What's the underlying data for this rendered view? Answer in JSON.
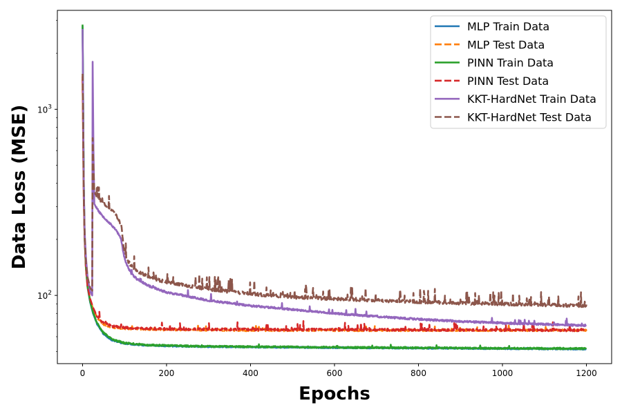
{
  "chart_data": {
    "type": "line",
    "title": "",
    "xlabel": "Epochs",
    "ylabel": "Data Loss (MSE)",
    "xlim": [
      -60,
      1260
    ],
    "ylim": [
      43,
      3400
    ],
    "yscale": "log",
    "grid": false,
    "legend_position": "top-right",
    "x_ticks": [
      0,
      200,
      400,
      600,
      800,
      1000,
      1200
    ],
    "x_tick_labels": [
      "0",
      "200",
      "400",
      "600",
      "800",
      "1000",
      "1200"
    ],
    "y_ticks": [
      100,
      1000
    ],
    "y_tick_labels": [
      "10²",
      "10³"
    ],
    "series": [
      {
        "name": "MLP Train Data",
        "color": "#1f77b4",
        "dash": "solid",
        "noise": 0.008,
        "spike_rate": 0.0,
        "spike_max": 0.0,
        "seed": 11,
        "points": [
          [
            0,
            2800
          ],
          [
            1,
            1500
          ],
          [
            2,
            700
          ],
          [
            3,
            380
          ],
          [
            5,
            200
          ],
          [
            8,
            140
          ],
          [
            12,
            110
          ],
          [
            18,
            92
          ],
          [
            25,
            80
          ],
          [
            35,
            70
          ],
          [
            50,
            62
          ],
          [
            70,
            57.5
          ],
          [
            100,
            55
          ],
          [
            150,
            54
          ],
          [
            200,
            53.5
          ],
          [
            300,
            53
          ],
          [
            400,
            52.8
          ],
          [
            600,
            52.4
          ],
          [
            800,
            52.1
          ],
          [
            1000,
            51.8
          ],
          [
            1200,
            51.5
          ]
        ]
      },
      {
        "name": "MLP Test Data",
        "color": "#ff7f0e",
        "dash": "dashed",
        "noise": 0.012,
        "spike_rate": 0.02,
        "spike_max": 0.05,
        "seed": 23,
        "points": [
          [
            0,
            1450
          ],
          [
            1,
            900
          ],
          [
            2,
            500
          ],
          [
            3,
            320
          ],
          [
            5,
            200
          ],
          [
            8,
            140
          ],
          [
            12,
            110
          ],
          [
            18,
            95
          ],
          [
            25,
            85
          ],
          [
            35,
            76
          ],
          [
            50,
            70
          ],
          [
            70,
            67.5
          ],
          [
            100,
            66.5
          ],
          [
            200,
            65.5
          ],
          [
            400,
            65
          ],
          [
            600,
            65
          ],
          [
            800,
            65
          ],
          [
            1000,
            65
          ],
          [
            1200,
            65
          ]
        ]
      },
      {
        "name": "PINN Train Data",
        "color": "#2ca02c",
        "dash": "solid",
        "noise": 0.01,
        "spike_rate": 0.015,
        "spike_max": 0.04,
        "seed": 37,
        "points": [
          [
            0,
            2850
          ],
          [
            1,
            1550
          ],
          [
            2,
            720
          ],
          [
            3,
            390
          ],
          [
            5,
            205
          ],
          [
            8,
            142
          ],
          [
            12,
            112
          ],
          [
            18,
            93
          ],
          [
            25,
            81
          ],
          [
            35,
            71
          ],
          [
            50,
            63
          ],
          [
            70,
            58
          ],
          [
            100,
            55.5
          ],
          [
            150,
            54.2
          ],
          [
            200,
            53.8
          ],
          [
            300,
            53.2
          ],
          [
            400,
            53
          ],
          [
            600,
            52.6
          ],
          [
            800,
            52.3
          ],
          [
            1000,
            52
          ],
          [
            1200,
            51.8
          ]
        ]
      },
      {
        "name": "PINN Test Data",
        "color": "#d62728",
        "dash": "dashed",
        "noise": 0.014,
        "spike_rate": 0.05,
        "spike_max": 0.1,
        "seed": 41,
        "points": [
          [
            0,
            1500
          ],
          [
            1,
            920
          ],
          [
            2,
            520
          ],
          [
            3,
            330
          ],
          [
            5,
            205
          ],
          [
            8,
            142
          ],
          [
            12,
            112
          ],
          [
            18,
            96
          ],
          [
            25,
            86
          ],
          [
            35,
            77
          ],
          [
            50,
            71
          ],
          [
            70,
            68.5
          ],
          [
            100,
            67
          ],
          [
            200,
            66
          ],
          [
            400,
            65.5
          ],
          [
            600,
            65.5
          ],
          [
            800,
            65.3
          ],
          [
            1000,
            65.2
          ],
          [
            1200,
            65
          ]
        ]
      },
      {
        "name": "KKT-HardNet Train Data",
        "color": "#9467bd",
        "dash": "solid",
        "noise": 0.012,
        "spike_rate": 0.03,
        "spike_max": 0.08,
        "seed": 53,
        "points": [
          [
            0,
            2700
          ],
          [
            1,
            1400
          ],
          [
            2,
            650
          ],
          [
            3,
            380
          ],
          [
            5,
            220
          ],
          [
            8,
            160
          ],
          [
            12,
            125
          ],
          [
            18,
            105
          ],
          [
            23,
            100
          ],
          [
            24,
            1800
          ],
          [
            26,
            600
          ],
          [
            28,
            310
          ],
          [
            40,
            280
          ],
          [
            60,
            250
          ],
          [
            80,
            225
          ],
          [
            92,
            200
          ],
          [
            97,
            170
          ],
          [
            103,
            150
          ],
          [
            115,
            132
          ],
          [
            130,
            122
          ],
          [
            160,
            112
          ],
          [
            200,
            104
          ],
          [
            300,
            94
          ],
          [
            400,
            88
          ],
          [
            500,
            84
          ],
          [
            600,
            80
          ],
          [
            700,
            77
          ],
          [
            800,
            74.5
          ],
          [
            900,
            72.5
          ],
          [
            1000,
            71
          ],
          [
            1100,
            70
          ],
          [
            1200,
            69
          ]
        ]
      },
      {
        "name": "KKT-HardNet Test Data",
        "color": "#8c564b",
        "dash": "dashed",
        "noise": 0.02,
        "spike_rate": 0.08,
        "spike_max": 0.18,
        "seed": 67,
        "points": [
          [
            0,
            1550
          ],
          [
            1,
            950
          ],
          [
            2,
            520
          ],
          [
            3,
            330
          ],
          [
            5,
            210
          ],
          [
            8,
            150
          ],
          [
            12,
            125
          ],
          [
            18,
            110
          ],
          [
            23,
            106
          ],
          [
            24,
            700
          ],
          [
            26,
            480
          ],
          [
            28,
            360
          ],
          [
            40,
            330
          ],
          [
            60,
            300
          ],
          [
            80,
            270
          ],
          [
            92,
            240
          ],
          [
            97,
            190
          ],
          [
            103,
            160
          ],
          [
            115,
            145
          ],
          [
            130,
            135
          ],
          [
            160,
            125
          ],
          [
            200,
            118
          ],
          [
            300,
            108
          ],
          [
            400,
            102
          ],
          [
            500,
            98
          ],
          [
            600,
            96
          ],
          [
            700,
            94
          ],
          [
            800,
            92.5
          ],
          [
            900,
            91
          ],
          [
            1000,
            90
          ],
          [
            1100,
            89
          ],
          [
            1200,
            88
          ]
        ]
      }
    ]
  }
}
